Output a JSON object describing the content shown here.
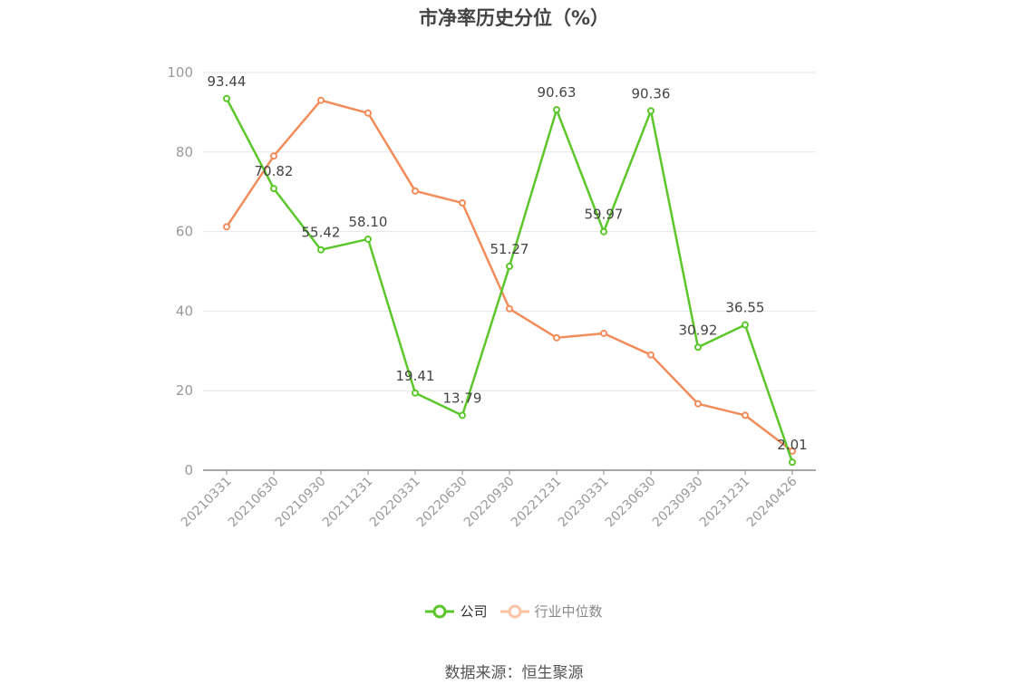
{
  "chart_data": {
    "type": "line",
    "title": "市净率历史分位（%）",
    "categories": [
      "20210331",
      "20210630",
      "20210930",
      "20211231",
      "20220331",
      "20220630",
      "20220930",
      "20221231",
      "20230331",
      "20230630",
      "20230930",
      "20231231",
      "20240426"
    ],
    "series": [
      {
        "name": "公司",
        "color": "#5cc72a",
        "values": [
          93.44,
          70.82,
          55.42,
          58.1,
          19.41,
          13.79,
          51.27,
          90.63,
          59.97,
          90.36,
          30.92,
          36.55,
          2.01
        ],
        "labels": [
          "93.44",
          "70.82",
          "55.42",
          "58.10",
          "19.41",
          "13.79",
          "51.27",
          "90.63",
          "59.97",
          "90.36",
          "30.92",
          "36.55",
          "2.01"
        ]
      },
      {
        "name": "行业中位数",
        "color": "#f28c5a",
        "values": [
          61.2,
          79.0,
          93.0,
          89.8,
          70.2,
          67.2,
          40.6,
          33.3,
          34.4,
          29.0,
          16.7,
          13.8,
          4.8
        ]
      }
    ],
    "yticks": [
      0,
      20,
      40,
      60,
      80,
      100
    ],
    "ylim": [
      0,
      100
    ],
    "grid": true,
    "legend_position": "bottom"
  },
  "source_text": "数据来源：恒生聚源"
}
